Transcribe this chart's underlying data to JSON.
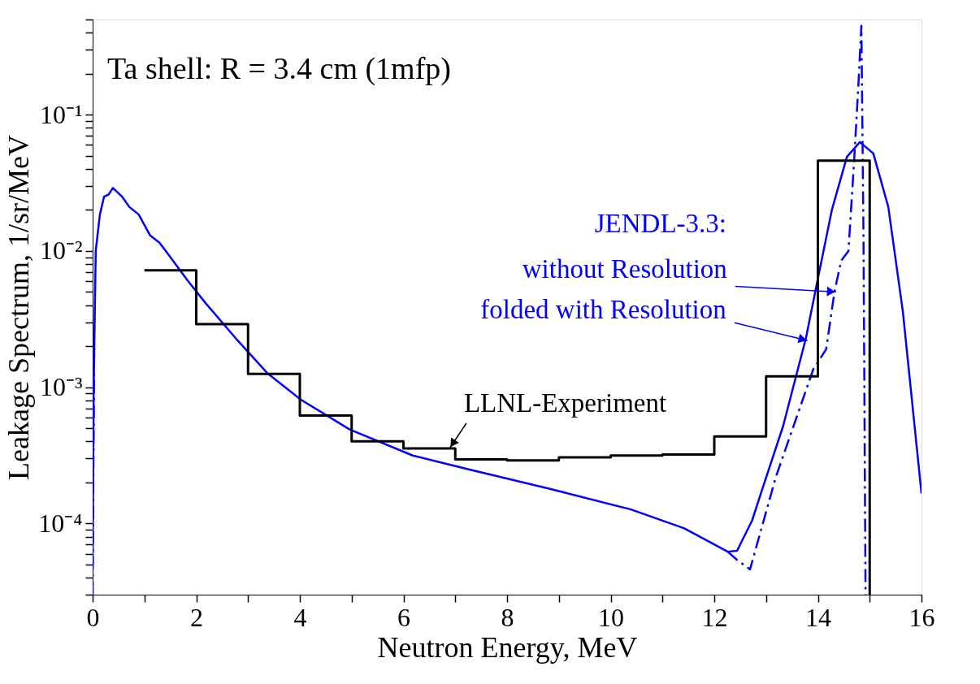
{
  "chart_data": {
    "type": "line",
    "xlabel": "Neutron Energy, MeV",
    "ylabel": "Leakage Spectrum, 1/sr/MeV",
    "log": "y",
    "grid": false,
    "xlim": [
      0,
      16
    ],
    "xticks": [
      0,
      {
        "value": 1,
        "label": null
      },
      2,
      {
        "value": 3,
        "label": null
      },
      4,
      {
        "value": 5,
        "label": null
      },
      6,
      {
        "value": 7,
        "label": null
      },
      8,
      {
        "value": 9,
        "label": null
      },
      10,
      {
        "value": 11,
        "label": null
      },
      12,
      {
        "value": 13,
        "label": null
      },
      14,
      {
        "value": 15,
        "label": null
      },
      16
    ],
    "ylim": [
      3e-05,
      0.5
    ],
    "yticks": [
      {
        "value": 3e-05,
        "label": null
      },
      {
        "value": 4e-05,
        "label": null
      },
      {
        "value": 5e-05,
        "label": null
      },
      {
        "value": 6e-05,
        "label": null
      },
      {
        "value": 7e-05,
        "label": null
      },
      {
        "value": 8e-05,
        "label": null
      },
      {
        "value": 9e-05,
        "label": null
      },
      {
        "value": 0.0001,
        "label": "10⁻⁴"
      },
      {
        "value": 0.0002,
        "label": null
      },
      {
        "value": 0.0003,
        "label": null
      },
      {
        "value": 0.0004,
        "label": null
      },
      {
        "value": 0.0005,
        "label": null
      },
      {
        "value": 0.0006,
        "label": null
      },
      {
        "value": 0.0007,
        "label": null
      },
      {
        "value": 0.0008,
        "label": null
      },
      {
        "value": 0.0009,
        "label": null
      },
      {
        "value": 0.001,
        "label": "10⁻³"
      },
      {
        "value": 0.002,
        "label": null
      },
      {
        "value": 0.003,
        "label": null
      },
      {
        "value": 0.004,
        "label": null
      },
      {
        "value": 0.005,
        "label": null
      },
      {
        "value": 0.006,
        "label": null
      },
      {
        "value": 0.007,
        "label": null
      },
      {
        "value": 0.008,
        "label": null
      },
      {
        "value": 0.009,
        "label": null
      },
      {
        "value": 0.01,
        "label": "10⁻²"
      },
      {
        "value": 0.02,
        "label": null
      },
      {
        "value": 0.03,
        "label": null
      },
      {
        "value": 0.04,
        "label": null
      },
      {
        "value": 0.05,
        "label": null
      },
      {
        "value": 0.06,
        "label": null
      },
      {
        "value": 0.07,
        "label": null
      },
      {
        "value": 0.08,
        "label": null
      },
      {
        "value": 0.09,
        "label": null
      },
      {
        "value": 0.1,
        "label": "10⁻¹"
      },
      {
        "value": 0.2,
        "label": null
      },
      {
        "value": 0.3,
        "label": null
      },
      {
        "value": 0.4,
        "label": null
      },
      {
        "value": 0.5,
        "label": null
      }
    ],
    "series": [
      {
        "type": "line",
        "color": "#0000ff",
        "line_style": "dashed",
        "x": [
          0.0,
          0.03,
          6.0,
          12.26,
          12.44,
          12.69,
          13.19,
          13.91,
          14.16,
          14.32,
          14.45,
          14.59,
          14.7,
          14.78,
          14.84,
          14.88,
          14.92
        ],
        "values": [
          3e-05,
          0.002,
          null,
          6.2e-05,
          5.4e-05,
          4.6e-05,
          0.00022,
          0.00135,
          0.0019,
          0.005,
          0.0085,
          0.01,
          0.046,
          0.16,
          0.45,
          0.013,
          3e-05
        ]
      },
      {
        "type": "line",
        "color": "#0000ff",
        "line_style": "solid",
        "x": [
          0.0,
          0.02,
          0.06,
          0.14,
          0.22,
          0.31,
          0.39,
          0.57,
          0.71,
          0.89,
          1.11,
          1.29,
          1.43,
          1.83,
          2.19,
          2.8,
          3.37,
          4.02,
          4.96,
          6.18,
          7.24,
          8.81,
          10.38,
          11.42,
          12.26,
          12.44,
          12.73,
          12.9,
          13.33,
          13.77,
          13.99,
          14.27,
          14.56,
          14.81,
          15.07,
          15.36,
          15.64,
          16.0
        ],
        "values": [
          5e-05,
          0.001,
          0.01,
          0.0185,
          0.025,
          0.026,
          0.029,
          0.025,
          0.021,
          0.0185,
          0.013,
          0.0115,
          0.0098,
          0.0061,
          0.0041,
          0.0022,
          0.00127,
          0.00081,
          0.00049,
          0.000315,
          0.00025,
          0.00018,
          0.000127,
          9.2e-05,
          6.2e-05,
          6.3e-05,
          0.000105,
          0.000166,
          0.00052,
          0.0023,
          0.006,
          0.02,
          0.049,
          0.063,
          0.052,
          0.021,
          0.0036,
          0.000166
        ]
      },
      {
        "type": "step",
        "color": "#000000",
        "line_style": "solid",
        "x": [
          1,
          2,
          3,
          4,
          5,
          6,
          7,
          8,
          9,
          10,
          11,
          12,
          13,
          14,
          15
        ],
        "values": [
          0.0072,
          0.0029,
          0.00125,
          0.00062,
          0.0004,
          0.000355,
          0.000295,
          0.00029,
          0.000305,
          0.000315,
          0.00032,
          0.000435,
          0.0012,
          0.046,
          3e-05
        ]
      }
    ],
    "annotations": [
      "Ta shell: R = 3.4 cm (1mfp)",
      "JENDL-3.3:",
      {
        "text": "without Resolution",
        "x": 14.35,
        "y": 0.005
      },
      {
        "text": "folded with Resolution",
        "x": 13.8,
        "y": 0.0022
      },
      {
        "text": "LLNL-Experiment",
        "x": 6.9,
        "y": 0.00036
      }
    ]
  }
}
